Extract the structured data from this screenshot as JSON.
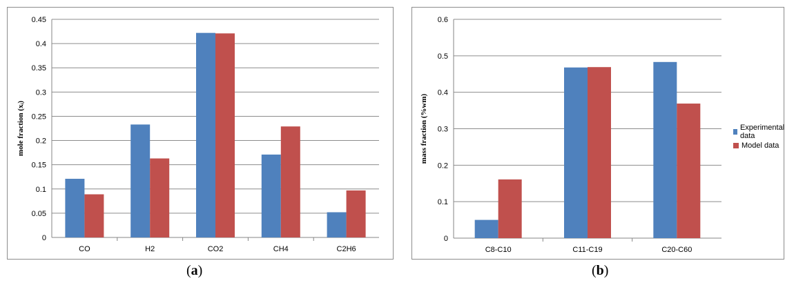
{
  "colors": {
    "experimental": "#4f81bd",
    "model": "#c0504d",
    "grid": "#8c8c8c",
    "axis": "#868686"
  },
  "captions": {
    "a": "a",
    "b": "b"
  },
  "chart_data": [
    {
      "id": "a",
      "type": "bar",
      "ylabel": "mole fraction (xᵢ)",
      "ylim": [
        0,
        0.45
      ],
      "yticks": [
        "0",
        "0.05",
        "0.1",
        "0.15",
        "0.2",
        "0.25",
        "0.3",
        "0.35",
        "0.4",
        "0.45"
      ],
      "categories": [
        "CO",
        "H2",
        "CO2",
        "CH4",
        "C2H6"
      ],
      "series": [
        {
          "name": "Experimental data",
          "values": [
            0.121,
            0.233,
            0.422,
            0.171,
            0.052
          ]
        },
        {
          "name": "Model data",
          "values": [
            0.089,
            0.163,
            0.421,
            0.229,
            0.097
          ]
        }
      ],
      "grid": true,
      "legend": "none"
    },
    {
      "id": "b",
      "type": "bar",
      "ylabel": "mass fraction (%wm)",
      "ylim": [
        0,
        0.6
      ],
      "yticks": [
        "0",
        "0.1",
        "0.2",
        "0.3",
        "0.4",
        "0.5",
        "0.6"
      ],
      "categories": [
        "C8-C10",
        "C11-C19",
        "C20-C60"
      ],
      "series": [
        {
          "name": "Experimental data",
          "values": [
            0.05,
            0.468,
            0.483
          ]
        },
        {
          "name": "Model data",
          "values": [
            0.161,
            0.469,
            0.369
          ]
        }
      ],
      "grid": true,
      "legend": "right"
    }
  ]
}
